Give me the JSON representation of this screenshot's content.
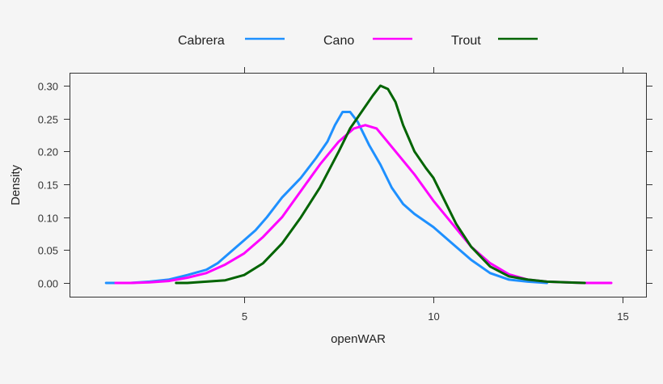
{
  "chart_data": {
    "type": "line",
    "title": "",
    "xlabel": "openWAR",
    "ylabel": "Density",
    "xlim": [
      0.4,
      15.6
    ],
    "ylim": [
      -0.02,
      0.32
    ],
    "xticks": [
      5,
      10,
      15
    ],
    "yticks": [
      0.0,
      0.05,
      0.1,
      0.15,
      0.2,
      0.25,
      0.3
    ],
    "ytick_labels": [
      "0.00",
      "0.05",
      "0.10",
      "0.15",
      "0.20",
      "0.25",
      "0.30"
    ],
    "grid": false,
    "legend_position": "top",
    "series": [
      {
        "name": "Cabrera",
        "color": "#1e90ff",
        "x": [
          1.35,
          2.0,
          2.5,
          3.0,
          3.5,
          4.0,
          4.3,
          4.7,
          5.0,
          5.3,
          5.6,
          6.0,
          6.5,
          6.9,
          7.2,
          7.4,
          7.6,
          7.8,
          8.0,
          8.3,
          8.6,
          8.9,
          9.2,
          9.5,
          10.0,
          10.5,
          11.0,
          11.5,
          12.0,
          12.5,
          13.0
        ],
        "y": [
          0.0,
          0.0,
          0.002,
          0.005,
          0.012,
          0.02,
          0.03,
          0.05,
          0.065,
          0.08,
          0.1,
          0.13,
          0.16,
          0.19,
          0.215,
          0.24,
          0.26,
          0.26,
          0.245,
          0.21,
          0.18,
          0.145,
          0.12,
          0.105,
          0.085,
          0.06,
          0.035,
          0.015,
          0.005,
          0.002,
          0.0
        ]
      },
      {
        "name": "Cano",
        "color": "#ff00ff",
        "x": [
          1.6,
          2.0,
          2.5,
          3.0,
          3.5,
          4.0,
          4.5,
          5.0,
          5.5,
          6.0,
          6.5,
          7.0,
          7.5,
          7.9,
          8.2,
          8.5,
          9.0,
          9.5,
          10.0,
          10.5,
          11.0,
          11.5,
          12.0,
          12.5,
          13.0,
          13.5,
          14.0,
          14.7
        ],
        "y": [
          0.0,
          0.0,
          0.001,
          0.003,
          0.008,
          0.015,
          0.028,
          0.045,
          0.07,
          0.1,
          0.14,
          0.18,
          0.215,
          0.235,
          0.24,
          0.235,
          0.2,
          0.165,
          0.125,
          0.09,
          0.055,
          0.03,
          0.013,
          0.005,
          0.002,
          0.001,
          0.0,
          0.0
        ]
      },
      {
        "name": "Trout",
        "color": "#006400",
        "x": [
          3.2,
          3.5,
          4.0,
          4.5,
          5.0,
          5.5,
          6.0,
          6.5,
          7.0,
          7.5,
          7.8,
          8.1,
          8.4,
          8.6,
          8.8,
          9.0,
          9.2,
          9.5,
          9.8,
          10.0,
          10.3,
          10.6,
          11.0,
          11.5,
          12.0,
          12.5,
          13.0,
          13.5,
          14.0
        ],
        "y": [
          0.0,
          0.0,
          0.002,
          0.004,
          0.012,
          0.03,
          0.06,
          0.1,
          0.145,
          0.2,
          0.235,
          0.26,
          0.285,
          0.3,
          0.295,
          0.275,
          0.24,
          0.2,
          0.175,
          0.16,
          0.125,
          0.09,
          0.055,
          0.025,
          0.01,
          0.005,
          0.002,
          0.001,
          0.0
        ]
      }
    ]
  },
  "legend": {
    "items": [
      {
        "label": "Cabrera",
        "color": "#1e90ff"
      },
      {
        "label": "Cano",
        "color": "#ff00ff"
      },
      {
        "label": "Trout",
        "color": "#006400"
      }
    ]
  }
}
